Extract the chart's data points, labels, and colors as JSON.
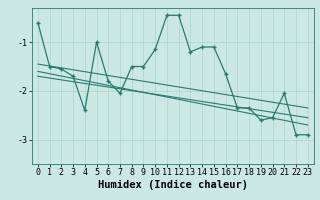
{
  "xlabel": "Humidex (Indice chaleur)",
  "ylabel": "",
  "background_color": "#cce8e4",
  "line_color": "#2a7a6f",
  "grid_color": "#aad4cc",
  "x_values": [
    0,
    1,
    2,
    3,
    4,
    5,
    6,
    7,
    8,
    9,
    10,
    11,
    12,
    13,
    14,
    15,
    16,
    17,
    18,
    19,
    20,
    21,
    22,
    23
  ],
  "humidex_data": [
    -0.6,
    -1.5,
    -1.55,
    -1.7,
    -2.4,
    -1.0,
    -1.8,
    -2.05,
    -1.5,
    -1.5,
    -1.15,
    -0.45,
    -0.45,
    -1.2,
    -1.1,
    -1.1,
    -1.65,
    -2.35,
    -2.35,
    -2.6,
    -2.55,
    -2.05,
    -2.9,
    -2.9
  ],
  "line1_x": [
    0,
    23
  ],
  "line1_y": [
    -1.45,
    -2.35
  ],
  "line2_x": [
    0,
    23
  ],
  "line2_y": [
    -1.6,
    -2.7
  ],
  "line3_x": [
    0,
    23
  ],
  "line3_y": [
    -1.7,
    -2.55
  ],
  "ylim": [
    -3.5,
    -0.3
  ],
  "xlim": [
    -0.5,
    23.5
  ],
  "yticks": [
    -3,
    -2,
    -1
  ],
  "xticks": [
    0,
    1,
    2,
    3,
    4,
    5,
    6,
    7,
    8,
    9,
    10,
    11,
    12,
    13,
    14,
    15,
    16,
    17,
    18,
    19,
    20,
    21,
    22,
    23
  ],
  "tick_fontsize": 6,
  "label_fontsize": 7.5
}
